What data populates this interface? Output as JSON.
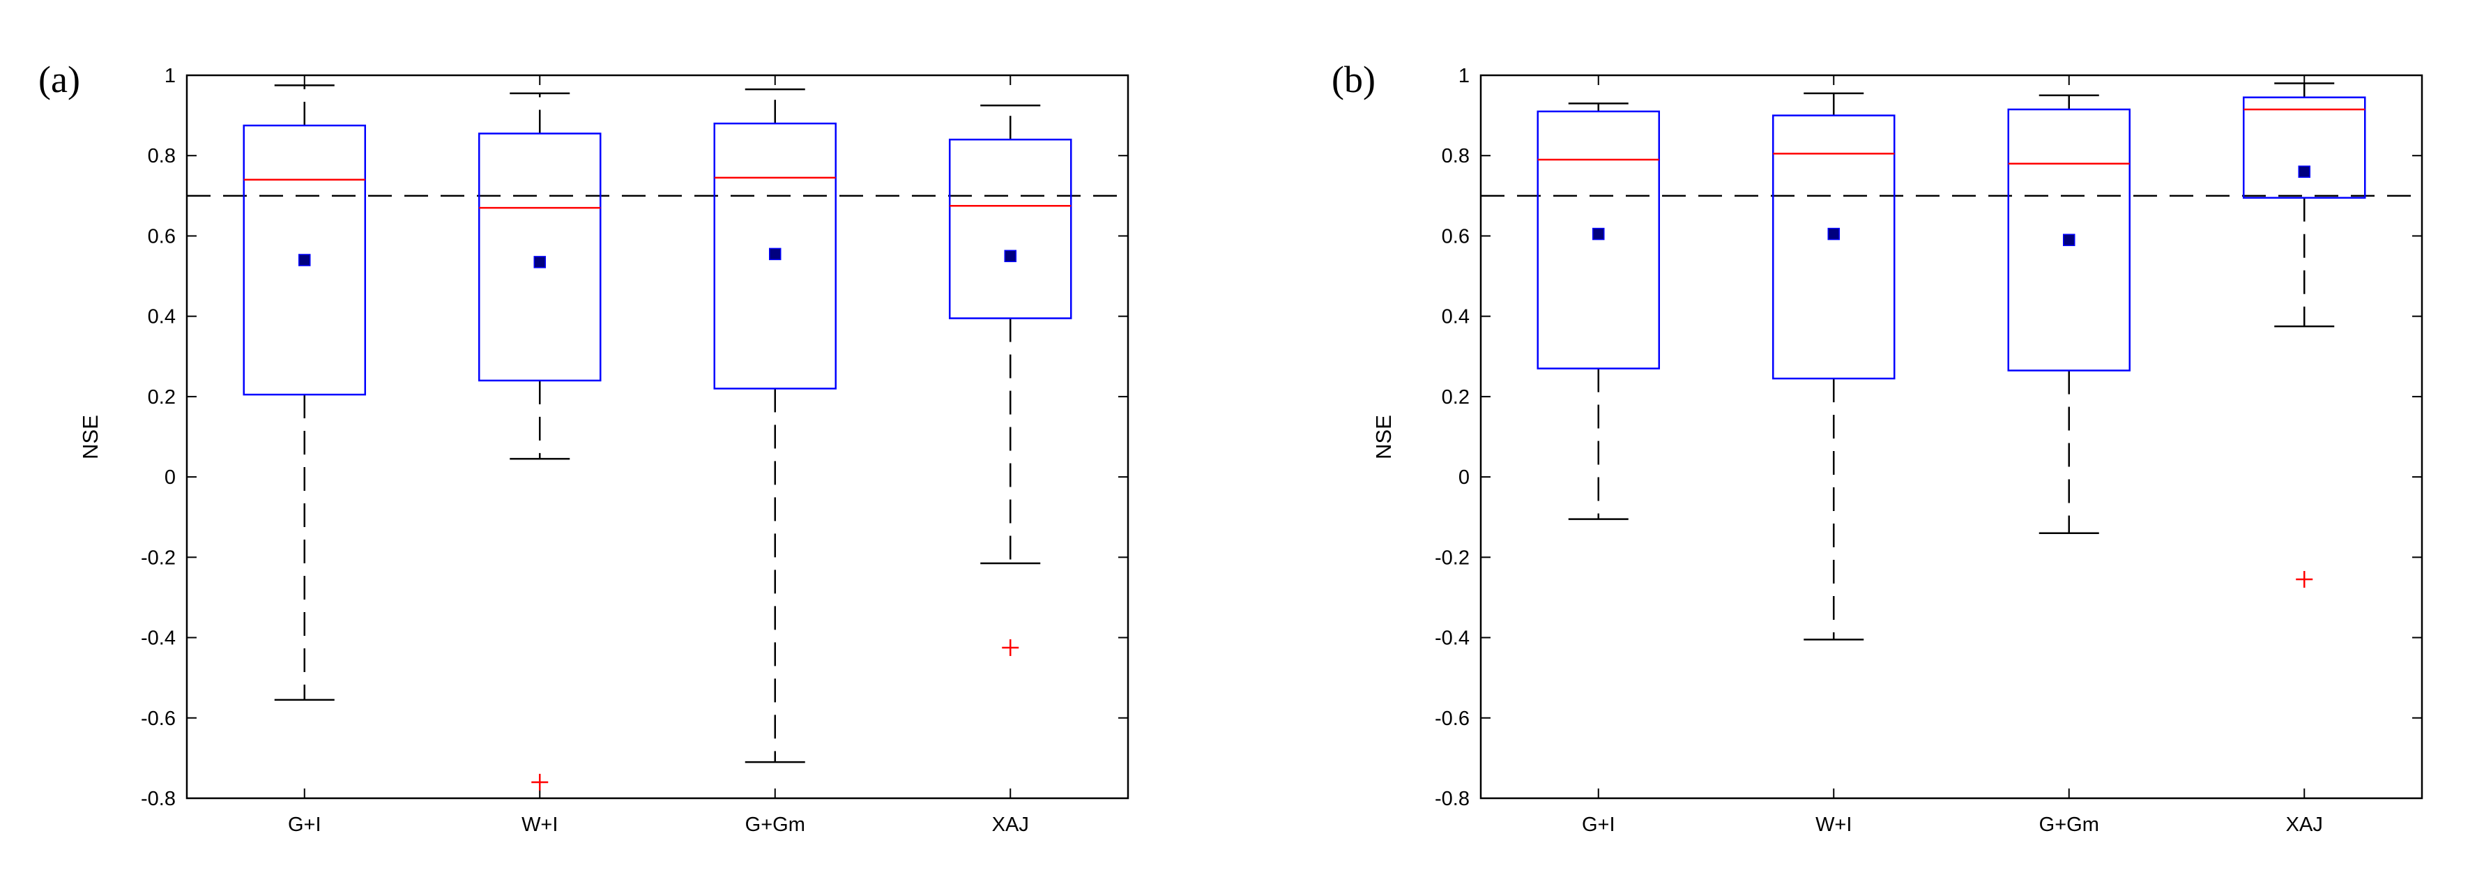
{
  "chart_data": [
    {
      "type": "box",
      "panel_label": "(a)",
      "ylabel": "NSE",
      "ylim": [
        -0.8,
        1.0
      ],
      "yticks": [
        -0.8,
        -0.6,
        -0.4,
        -0.2,
        0,
        0.2,
        0.4,
        0.6,
        0.8,
        1
      ],
      "ytick_labels": [
        "-0.8",
        "-0.6",
        "-0.4",
        "-0.2",
        "0",
        "0.2",
        "0.4",
        "0.6",
        "0.8",
        "1"
      ],
      "reference_line": 0.7,
      "categories": [
        "G+I",
        "W+I",
        "G+Gm",
        "XAJ"
      ],
      "boxes": [
        {
          "category": "G+I",
          "whisker_low": -0.555,
          "q1": 0.205,
          "median": 0.74,
          "q3": 0.875,
          "whisker_high": 0.975,
          "mean": 0.54,
          "outliers": []
        },
        {
          "category": "W+I",
          "whisker_low": 0.045,
          "q1": 0.24,
          "median": 0.67,
          "q3": 0.855,
          "whisker_high": 0.955,
          "mean": 0.535,
          "outliers": [
            -0.76
          ]
        },
        {
          "category": "G+Gm",
          "whisker_low": -0.71,
          "q1": 0.22,
          "median": 0.745,
          "q3": 0.88,
          "whisker_high": 0.965,
          "mean": 0.555,
          "outliers": []
        },
        {
          "category": "XAJ",
          "whisker_low": -0.215,
          "q1": 0.395,
          "median": 0.675,
          "q3": 0.84,
          "whisker_high": 0.925,
          "mean": 0.55,
          "outliers": [
            -0.425
          ]
        }
      ]
    },
    {
      "type": "box",
      "panel_label": "(b)",
      "ylabel": "NSE",
      "ylim": [
        -0.8,
        1.0
      ],
      "yticks": [
        -0.8,
        -0.6,
        -0.4,
        -0.2,
        0,
        0.2,
        0.4,
        0.6,
        0.8,
        1
      ],
      "ytick_labels": [
        "-0.8",
        "-0.6",
        "-0.4",
        "-0.2",
        "0",
        "0.2",
        "0.4",
        "0.6",
        "0.8",
        "1"
      ],
      "reference_line": 0.7,
      "categories": [
        "G+I",
        "W+I",
        "G+Gm",
        "XAJ"
      ],
      "boxes": [
        {
          "category": "G+I",
          "whisker_low": -0.105,
          "q1": 0.27,
          "median": 0.79,
          "q3": 0.91,
          "whisker_high": 0.93,
          "mean": 0.605,
          "outliers": []
        },
        {
          "category": "W+I",
          "whisker_low": -0.405,
          "q1": 0.245,
          "median": 0.805,
          "q3": 0.9,
          "whisker_high": 0.955,
          "mean": 0.605,
          "outliers": []
        },
        {
          "category": "G+Gm",
          "whisker_low": -0.14,
          "q1": 0.265,
          "median": 0.78,
          "q3": 0.915,
          "whisker_high": 0.95,
          "mean": 0.59,
          "outliers": []
        },
        {
          "category": "XAJ",
          "whisker_low": 0.375,
          "q1": 0.695,
          "median": 0.915,
          "q3": 0.945,
          "whisker_high": 0.98,
          "mean": 0.76,
          "outliers": [
            -0.255
          ]
        }
      ]
    }
  ],
  "colors": {
    "box": "#0000ff",
    "median": "#ff0000",
    "mean_marker": "#00007f",
    "outlier": "#ff0000",
    "whisker": "#000000",
    "reference_line": "#000000"
  },
  "icons": {
    "mean_marker": "filled-square",
    "outlier_marker": "plus"
  }
}
